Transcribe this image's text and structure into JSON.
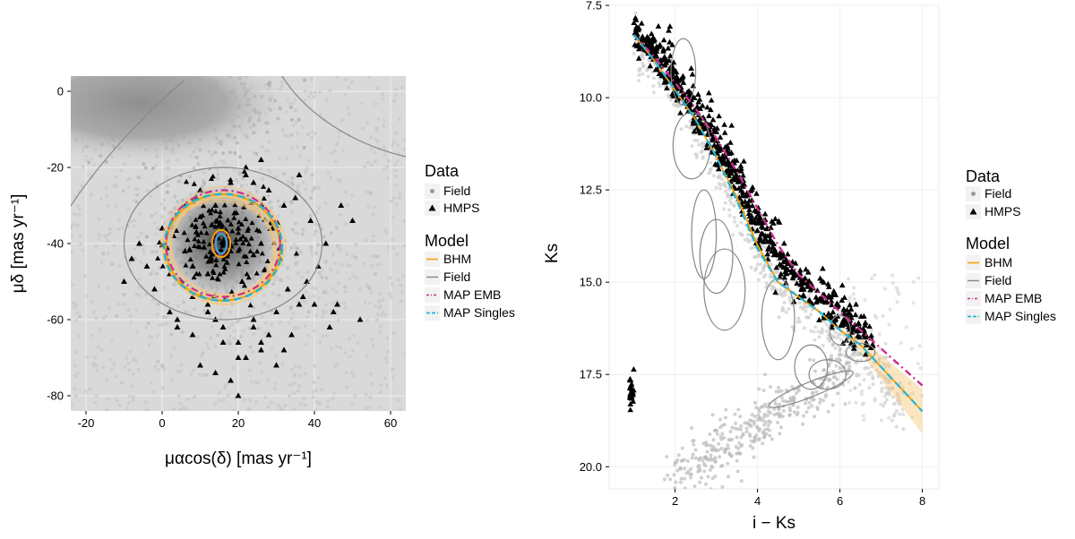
{
  "chart_data": [
    {
      "type": "scatter",
      "title": "",
      "xlabel": "μαcos(δ) [mas yr⁻¹]",
      "ylabel": "μδ [mas yr⁻¹]",
      "xlim": [
        -24,
        64
      ],
      "ylim": [
        -84,
        4
      ],
      "x_ticks": [
        "-20",
        "0",
        "20",
        "40",
        "60"
      ],
      "y_ticks": [
        "0",
        "-20",
        "-40",
        "-60",
        "-80"
      ],
      "x_tick_values": [
        -20,
        0,
        20,
        40,
        60
      ],
      "y_tick_values": [
        0,
        -20,
        -40,
        -60,
        -80
      ],
      "series": [
        {
          "name": "Field",
          "kind": "points",
          "center": [
            4,
            2
          ],
          "spread": [
            14,
            10
          ],
          "extra_center": [
            18,
            -40
          ],
          "extra_spread": [
            28,
            22
          ]
        },
        {
          "name": "HMPS",
          "kind": "points",
          "x": [
            16,
            14,
            18,
            13,
            20,
            11,
            22,
            15,
            17,
            9,
            24,
            12,
            19,
            8,
            26,
            14,
            21,
            10,
            27,
            6,
            29,
            5,
            31,
            3,
            33,
            35,
            37,
            39,
            41,
            43,
            45,
            47,
            -6,
            -4,
            -2,
            0,
            2,
            4,
            6,
            8,
            10,
            12,
            14,
            16,
            18,
            20,
            22,
            24,
            26,
            28,
            30,
            32,
            34,
            36,
            38,
            40,
            -8,
            -10,
            50,
            52,
            10,
            14,
            18,
            22,
            26,
            30,
            8,
            12,
            16,
            20,
            24,
            28,
            32,
            36,
            20,
            22,
            24,
            26,
            44,
            46,
            2,
            4
          ],
          "y": [
            -40,
            -38,
            -42,
            -44,
            -36,
            -41,
            -39,
            -35,
            -45,
            -37,
            -43,
            -48,
            -32,
            -46,
            -40,
            -30,
            -50,
            -33,
            -47,
            -42,
            -36,
            -50,
            -44,
            -38,
            -52,
            -28,
            -54,
            -34,
            -46,
            -40,
            -58,
            -30,
            -40,
            -46,
            -52,
            -36,
            -58,
            -62,
            -30,
            -64,
            -26,
            -56,
            -60,
            -66,
            -24,
            -70,
            -22,
            -62,
            -68,
            -26,
            -58,
            -30,
            -64,
            -22,
            -50,
            -56,
            -44,
            -50,
            -34,
            -60,
            -72,
            -74,
            -76,
            -70,
            -66,
            -72,
            -54,
            -58,
            -62,
            -66,
            -60,
            -64,
            -68,
            -56,
            -80,
            -20,
            -24,
            -18,
            -62,
            -56,
            -48,
            -60
          ]
        },
        {
          "name": "BHM",
          "kind": "ellipse",
          "cx": 16,
          "cy": -41,
          "rx": 15,
          "ry": 14
        },
        {
          "name": "Field",
          "kind": "ellipse",
          "cx": 16,
          "cy": -40,
          "rx": 26,
          "ry": 20
        },
        {
          "name": "MAP EMB",
          "kind": "ellipse",
          "cx": 16,
          "cy": -40,
          "rx": 15,
          "ry": 14
        },
        {
          "name": "MAP Singles",
          "kind": "ellipse",
          "cx": 16,
          "cy": -41,
          "rx": 15.5,
          "ry": 14
        }
      ]
    },
    {
      "type": "scatter",
      "title": "",
      "xlabel": "i − Ks",
      "ylabel": "Ks",
      "xlim": [
        0.4,
        8.4
      ],
      "ylim": [
        20.6,
        7.5
      ],
      "x_ticks": [
        "2",
        "4",
        "6",
        "8"
      ],
      "y_ticks": [
        "7.5",
        "10.0",
        "12.5",
        "15.0",
        "17.5",
        "20.0"
      ],
      "x_tick_values": [
        2,
        4,
        6,
        8
      ],
      "y_tick_values": [
        7.5,
        10.0,
        12.5,
        15.0,
        17.5,
        20.0
      ],
      "series": [
        {
          "name": "Field",
          "kind": "points",
          "note": "field sequence"
        },
        {
          "name": "HMPS",
          "kind": "points",
          "note": "along binary sequence"
        },
        {
          "name": "BHM",
          "kind": "line",
          "x": [
            1.0,
            1.5,
            2.0,
            2.5,
            3.0,
            3.5,
            4.0,
            4.5,
            5.0,
            5.5,
            6.0,
            6.5,
            7.0,
            7.5,
            8.0
          ],
          "y": [
            8.3,
            9.0,
            9.8,
            10.6,
            11.6,
            12.7,
            14.0,
            15.0,
            15.4,
            15.8,
            16.3,
            16.7,
            17.3,
            17.9,
            18.5
          ]
        },
        {
          "name": "MAP EMB",
          "kind": "line",
          "x": [
            1.0,
            1.5,
            2.0,
            2.5,
            3.0,
            3.5,
            4.0,
            4.5,
            5.0,
            5.5,
            6.0,
            6.5,
            7.0,
            7.5,
            8.0
          ],
          "y": [
            8.3,
            8.9,
            9.6,
            10.3,
            11.1,
            12.0,
            13.0,
            14.0,
            14.8,
            15.3,
            15.8,
            16.3,
            16.8,
            17.3,
            17.8
          ]
        },
        {
          "name": "MAP Singles",
          "kind": "line",
          "x": [
            1.0,
            1.5,
            2.0,
            2.5,
            3.0,
            3.5,
            4.0,
            4.5,
            5.0,
            5.5,
            6.0,
            6.5,
            7.0,
            7.5,
            8.0
          ],
          "y": [
            8.3,
            9.0,
            9.8,
            10.6,
            11.6,
            12.8,
            14.1,
            15.0,
            15.4,
            15.8,
            16.3,
            16.7,
            17.3,
            17.9,
            18.5
          ]
        },
        {
          "name": "Field",
          "kind": "ellipses",
          "items": [
            {
              "cx": 2.2,
              "cy": 9.3,
              "rx": 0.3,
              "ry": 0.9,
              "rot": 0
            },
            {
              "cx": 2.4,
              "cy": 11.3,
              "rx": 0.45,
              "ry": 0.9,
              "rot": 0
            },
            {
              "cx": 2.7,
              "cy": 13.7,
              "rx": 0.3,
              "ry": 1.2,
              "rot": 0
            },
            {
              "cx": 3.0,
              "cy": 14.3,
              "rx": 0.4,
              "ry": 1.0,
              "rot": 0
            },
            {
              "cx": 3.2,
              "cy": 15.2,
              "rx": 0.5,
              "ry": 1.1,
              "rot": 0
            },
            {
              "cx": 4.5,
              "cy": 16.0,
              "rx": 0.4,
              "ry": 1.1,
              "rot": 0
            },
            {
              "cx": 5.3,
              "cy": 17.3,
              "rx": 0.4,
              "ry": 0.6,
              "rot": 0
            },
            {
              "cx": 5.7,
              "cy": 17.5,
              "rx": 0.45,
              "ry": 0.4,
              "rot": 0
            },
            {
              "cx": 6.0,
              "cy": 16.3,
              "rx": 0.25,
              "ry": 0.4,
              "rot": 0
            },
            {
              "cx": 6.5,
              "cy": 16.9,
              "rx": 0.35,
              "ry": 0.25,
              "rot": 0
            },
            {
              "cx": 5.3,
              "cy": 17.9,
              "rx": 1.1,
              "ry": 0.2,
              "rot": -22
            }
          ]
        }
      ]
    }
  ],
  "legend": {
    "data_title": "Data",
    "data_items": [
      "Field",
      "HMPS"
    ],
    "model_title": "Model",
    "model_items": [
      "BHM",
      "Field",
      "MAP EMB",
      "MAP Singles"
    ]
  },
  "colors": {
    "field_points": "#9a9a9a",
    "hmps": "#000000",
    "bhm": "#f5a300",
    "bhm_band": "#f7c776",
    "field_model": "#888888",
    "map_emb": "#cc2c8f",
    "map_singles": "#21b5d6",
    "panel_bg": "#d6d6d6",
    "grid": "#eeeeee"
  }
}
